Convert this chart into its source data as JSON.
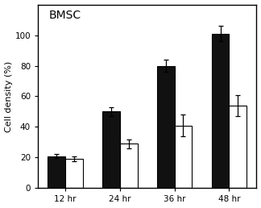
{
  "title": "BMSC",
  "ylabel": "Cell density (%)",
  "categories": [
    "12 hr",
    "24 hr",
    "36 hr",
    "48 hr"
  ],
  "black_values": [
    21,
    50,
    80,
    101
  ],
  "white_values": [
    19,
    29,
    41,
    54
  ],
  "black_errors": [
    1.5,
    3,
    4,
    5
  ],
  "white_errors": [
    1.5,
    3,
    7,
    7
  ],
  "ylim": [
    0,
    120
  ],
  "yticks": [
    0,
    20,
    40,
    60,
    80,
    100
  ],
  "bar_width": 0.32,
  "black_color": "#111111",
  "white_color": "#ffffff",
  "edge_color": "#000000",
  "background_color": "#ffffff",
  "title_fontsize": 10,
  "label_fontsize": 8,
  "tick_fontsize": 7.5
}
